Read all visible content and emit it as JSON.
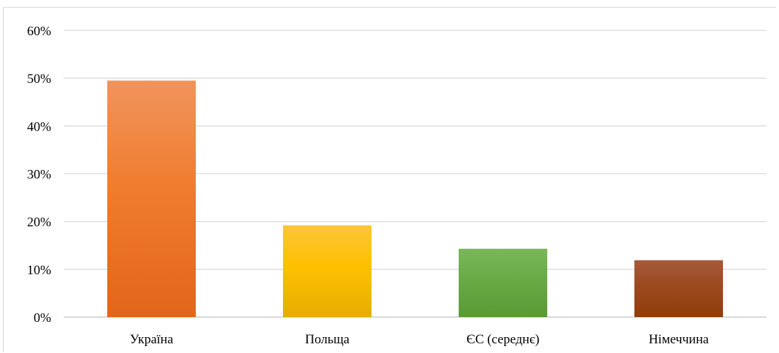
{
  "chart_data": {
    "type": "bar",
    "title": "",
    "xlabel": "",
    "ylabel": "",
    "categories": [
      "Україна",
      "Польща",
      "ЄС (середнє)",
      "Німеччина"
    ],
    "values": [
      49.5,
      19.2,
      14.3,
      11.9
    ],
    "value_unit": "%",
    "ylim": [
      0,
      60
    ],
    "y_ticks": [
      0,
      10,
      20,
      30,
      40,
      50,
      60
    ],
    "y_tick_labels": [
      "0%",
      "10%",
      "20%",
      "30%",
      "40%",
      "50%",
      "60%"
    ],
    "grid": true,
    "legend": "none",
    "bar_colors": [
      {
        "top": "#f0945c",
        "mid": "#f07c2e",
        "bottom": "#e2661a"
      },
      {
        "top": "#fdc53a",
        "mid": "#ffc000",
        "bottom": "#e4ad00"
      },
      {
        "top": "#7ab75a",
        "mid": "#6aaa45",
        "bottom": "#5a9a34"
      },
      {
        "top": "#a55a3b",
        "mid": "#9c4a1f",
        "bottom": "#8e3d0c"
      }
    ],
    "bar_names": [
      "bar-ukraine",
      "bar-poland",
      "bar-eu-average",
      "bar-germany"
    ]
  }
}
